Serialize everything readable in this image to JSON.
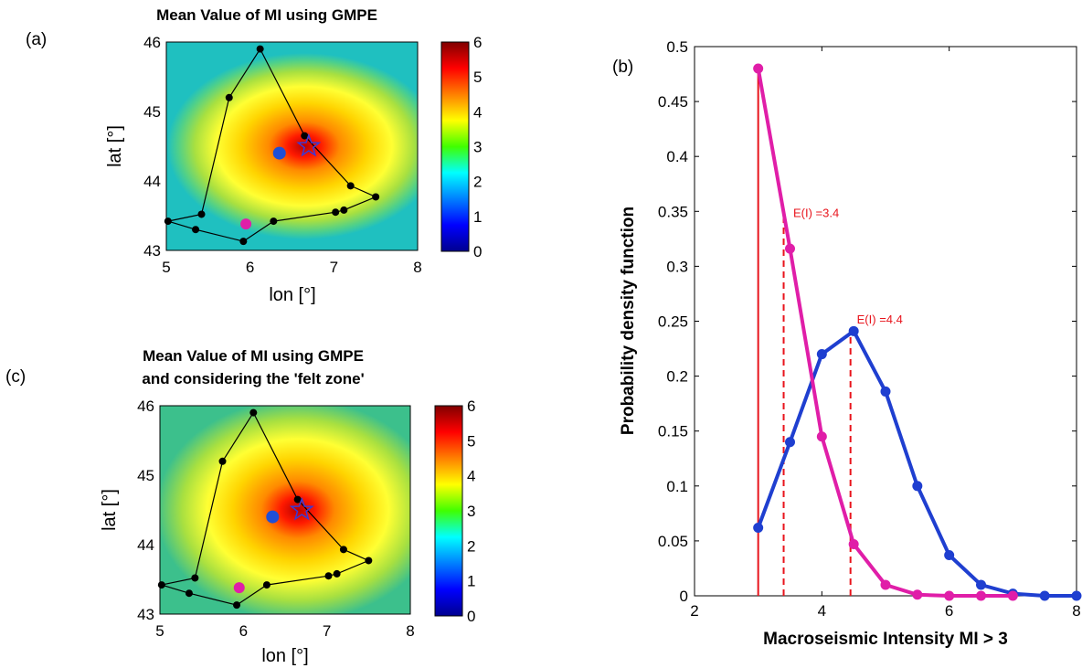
{
  "panels": {
    "a": {
      "label": "(a)",
      "title_lines": [
        "Mean Value of MI using GMPE"
      ],
      "xlabel": "lon [°]",
      "ylabel": "lat [°]",
      "xticks": [
        "5",
        "6",
        "7",
        "8"
      ],
      "yticks": [
        "43",
        "44",
        "45",
        "46"
      ],
      "colorbar_ticks": [
        "0",
        "1",
        "2",
        "3",
        "4",
        "5",
        "6"
      ]
    },
    "c": {
      "label": "(c)",
      "title_lines": [
        "Mean Value of MI using GMPE",
        "and considering the 'felt zone'"
      ],
      "xlabel": "lon [°]",
      "ylabel": "lat [°]",
      "xticks": [
        "5",
        "6",
        "7",
        "8"
      ],
      "yticks": [
        "43",
        "44",
        "45",
        "46"
      ],
      "colorbar_ticks": [
        "0",
        "1",
        "2",
        "3",
        "4",
        "5",
        "6"
      ]
    }
  },
  "map_data": {
    "xlim": [
      5,
      8
    ],
    "ylim": [
      43,
      46
    ],
    "clim": [
      0,
      6
    ],
    "colormap": "jet",
    "epicenter_star": {
      "lon": 6.7,
      "lat": 44.5,
      "color": "#3a3ad6"
    },
    "blue_point": {
      "lon": 6.35,
      "lat": 44.4,
      "color": "#1f4fd6"
    },
    "magenta_point": {
      "lon": 5.95,
      "lat": 43.38,
      "color": "#e01ea8"
    },
    "felt_zone_polygon": [
      [
        6.12,
        45.9
      ],
      [
        5.75,
        45.2
      ],
      [
        5.42,
        43.52
      ],
      [
        5.02,
        43.42
      ],
      [
        5.35,
        43.3
      ],
      [
        5.92,
        43.13
      ],
      [
        6.28,
        43.42
      ],
      [
        7.02,
        43.55
      ],
      [
        7.12,
        43.58
      ],
      [
        7.5,
        43.77
      ],
      [
        7.2,
        43.93
      ],
      [
        6.65,
        44.65
      ],
      [
        6.12,
        45.9
      ]
    ]
  },
  "chart_data": {
    "type": "line",
    "panel_label": "(b)",
    "xlabel": "Macroseismic Intensity MI > 3",
    "ylabel": "Probability density function",
    "xlim": [
      2,
      8
    ],
    "ylim": [
      0,
      0.5
    ],
    "xticks": [
      "2",
      "4",
      "6",
      "8"
    ],
    "yticks": [
      "0",
      "0.05",
      "0.1",
      "0.15",
      "0.2",
      "0.25",
      "0.3",
      "0.35",
      "0.4",
      "0.45",
      "0.5"
    ],
    "series": [
      {
        "color": "#1f3fd0",
        "x": [
          3,
          3.5,
          4,
          4.5,
          5,
          5.5,
          6,
          6.5,
          7,
          7.5,
          8
        ],
        "y": [
          0.062,
          0.14,
          0.22,
          0.241,
          0.186,
          0.1,
          0.037,
          0.01,
          0.002,
          0.0,
          0.0
        ],
        "mean": 4.4
      },
      {
        "color": "#e01ea8",
        "x": [
          3,
          3.5,
          4,
          4.5,
          5,
          5.5,
          6,
          6.5,
          7
        ],
        "y": [
          0.48,
          0.316,
          0.145,
          0.047,
          0.01,
          0.001,
          0.0,
          0.0,
          0.0
        ],
        "mean": 3.4
      }
    ],
    "vertical_lines": [
      {
        "x": 3,
        "style": "solid",
        "color": "#e8141c"
      },
      {
        "x": 3.4,
        "style": "dashed",
        "color": "#e8141c"
      },
      {
        "x": 4.45,
        "style": "dashed",
        "color": "#e8141c"
      }
    ],
    "annotations": [
      "E(I) =3.4",
      "E(I) =4.4"
    ]
  }
}
